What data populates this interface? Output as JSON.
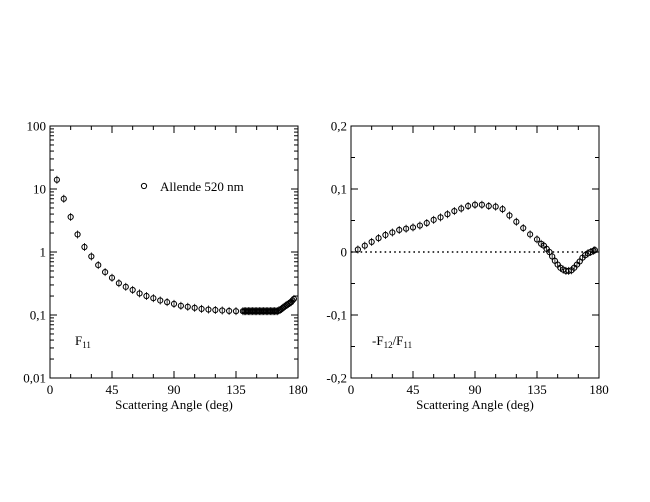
{
  "chart_data": [
    {
      "type": "scatter",
      "xlabel": "Scattering Angle (deg)",
      "ylabel": "",
      "xlim": [
        0,
        180
      ],
      "ylim": [
        0.01,
        100
      ],
      "yscale": "log",
      "xticks": [
        0,
        45,
        90,
        135,
        180
      ],
      "xtick_labels": [
        "0",
        "45",
        "90",
        "135",
        "180"
      ],
      "yticks": [
        0.01,
        0.1,
        1,
        10,
        100
      ],
      "ytick_labels": [
        "0,01",
        "0,1",
        "1",
        "10",
        "100"
      ],
      "legend": {
        "label": "Allende 520 nm",
        "position": "top-right"
      },
      "annotation": {
        "main": "F",
        "sub": "11"
      },
      "grid": false,
      "series": [
        {
          "marker": "open-circle",
          "x": [
            5,
            10,
            15,
            20,
            25,
            30,
            35,
            40,
            45,
            50,
            55,
            60,
            65,
            70,
            75,
            80,
            85,
            90,
            95,
            100,
            105,
            110,
            115,
            120,
            125,
            130,
            135,
            140,
            141,
            142,
            143,
            144,
            145,
            146,
            147,
            148,
            149,
            150,
            151,
            152,
            153,
            154,
            155,
            156,
            157,
            158,
            159,
            160,
            161,
            162,
            163,
            164,
            165,
            166,
            167,
            168,
            169,
            170,
            171,
            172,
            173,
            174,
            175,
            176,
            177
          ],
          "y": [
            14,
            7,
            3.6,
            1.9,
            1.2,
            0.85,
            0.62,
            0.48,
            0.39,
            0.32,
            0.28,
            0.25,
            0.22,
            0.2,
            0.185,
            0.17,
            0.16,
            0.15,
            0.14,
            0.135,
            0.13,
            0.125,
            0.122,
            0.12,
            0.118,
            0.116,
            0.115,
            0.115,
            0.115,
            0.115,
            0.115,
            0.115,
            0.115,
            0.115,
            0.115,
            0.115,
            0.115,
            0.115,
            0.115,
            0.115,
            0.115,
            0.115,
            0.115,
            0.115,
            0.115,
            0.115,
            0.115,
            0.115,
            0.115,
            0.115,
            0.115,
            0.115,
            0.115,
            0.118,
            0.12,
            0.125,
            0.13,
            0.135,
            0.14,
            0.145,
            0.15,
            0.155,
            0.16,
            0.17,
            0.18
          ]
        }
      ]
    },
    {
      "type": "scatter",
      "xlabel": "Scattering Angle (deg)",
      "ylabel": "",
      "xlim": [
        0,
        180
      ],
      "ylim": [
        -0.2,
        0.2
      ],
      "xticks": [
        0,
        45,
        90,
        135,
        180
      ],
      "xtick_labels": [
        "0",
        "45",
        "90",
        "135",
        "180"
      ],
      "yticks": [
        -0.2,
        -0.1,
        0,
        0.1,
        0.2
      ],
      "ytick_labels": [
        "-0,2",
        "-0,1",
        "0",
        "0,1",
        "0,2"
      ],
      "annotation": {
        "pre": "-F",
        "sub1": "12",
        "mid": "/F",
        "sub2": "11"
      },
      "reference_line": {
        "y": 0,
        "style": "dotted"
      },
      "grid": false,
      "series": [
        {
          "marker": "open-circle",
          "x": [
            5,
            10,
            15,
            20,
            25,
            30,
            35,
            40,
            45,
            50,
            55,
            60,
            65,
            70,
            75,
            80,
            85,
            90,
            95,
            100,
            105,
            110,
            115,
            120,
            125,
            130,
            135,
            138,
            140,
            142,
            144,
            146,
            148,
            150,
            152,
            154,
            156,
            158,
            160,
            162,
            164,
            166,
            168,
            170,
            172,
            174,
            176,
            177
          ],
          "y": [
            0.004,
            0.01,
            0.016,
            0.022,
            0.027,
            0.031,
            0.035,
            0.037,
            0.039,
            0.042,
            0.046,
            0.051,
            0.055,
            0.06,
            0.065,
            0.069,
            0.073,
            0.075,
            0.075,
            0.073,
            0.072,
            0.068,
            0.058,
            0.048,
            0.038,
            0.028,
            0.02,
            0.013,
            0.01,
            0.005,
            0.0,
            -0.007,
            -0.014,
            -0.02,
            -0.025,
            -0.028,
            -0.03,
            -0.03,
            -0.029,
            -0.025,
            -0.02,
            -0.015,
            -0.009,
            -0.005,
            -0.002,
            0.0,
            0.002,
            0.003
          ]
        }
      ]
    }
  ]
}
